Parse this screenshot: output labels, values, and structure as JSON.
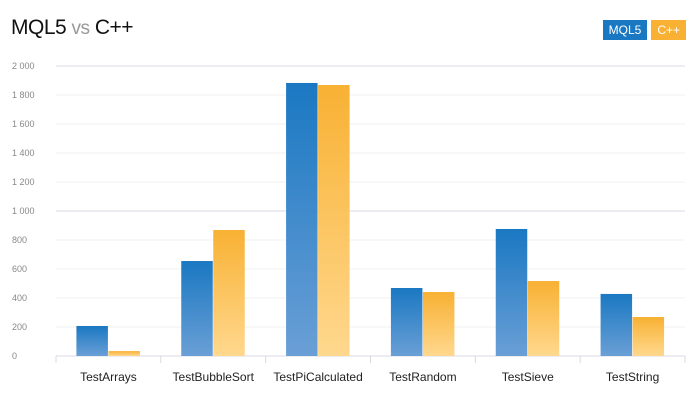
{
  "title": {
    "left": "MQL5",
    "middle": "vs",
    "right": "C++"
  },
  "colors": {
    "MQL5": "#1a78c2",
    "C++": "#f8b133"
  },
  "chart_data": {
    "type": "bar",
    "title": "MQL5 vs C++",
    "categories": [
      "TestArrays",
      "TestBubbleSort",
      "TestPiCalculated",
      "TestRandom",
      "TestSieve",
      "TestString"
    ],
    "series": [
      {
        "name": "MQL5",
        "values": [
          207,
          655,
          1883,
          469,
          876,
          428
        ]
      },
      {
        "name": "C++",
        "values": [
          34,
          869,
          1869,
          441,
          517,
          269
        ]
      }
    ],
    "yticks": [
      "0",
      "200",
      "400",
      "600",
      "800",
      "1 000",
      "1 200",
      "1 400",
      "1 600",
      "1 800",
      "2 000"
    ],
    "ylim": [
      0,
      2000
    ],
    "grid": true,
    "legend": "top-right"
  }
}
